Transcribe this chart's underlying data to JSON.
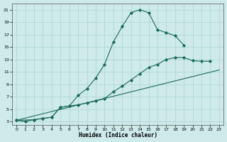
{
  "xlabel": "Humidex (Indice chaleur)",
  "xlim": [
    -0.5,
    23.5
  ],
  "ylim": [
    2.5,
    22.0
  ],
  "xticks": [
    0,
    1,
    2,
    3,
    4,
    5,
    6,
    7,
    8,
    9,
    10,
    11,
    12,
    13,
    14,
    15,
    16,
    17,
    18,
    19,
    20,
    21,
    22,
    23
  ],
  "yticks": [
    3,
    5,
    7,
    9,
    11,
    13,
    15,
    17,
    19,
    21
  ],
  "bg_color": "#ceeaea",
  "line_color": "#1e6b5a",
  "grid_color": "#aad4d4",
  "line1_x": [
    0,
    1,
    2,
    3,
    4,
    5,
    6,
    7,
    8,
    9,
    10,
    11,
    12,
    13,
    14,
    15,
    16,
    17,
    18,
    19
  ],
  "line1_y": [
    3.2,
    3.0,
    3.3,
    3.5,
    3.7,
    5.3,
    5.5,
    7.2,
    8.3,
    10.0,
    12.2,
    15.8,
    18.3,
    20.5,
    21.0,
    20.5,
    17.8,
    17.3,
    16.8,
    15.3
  ],
  "line2_x": [
    0,
    2,
    3,
    4,
    5,
    6,
    7,
    8,
    9,
    10,
    11,
    12,
    13,
    14,
    15,
    16,
    17,
    18,
    19,
    20,
    21,
    22
  ],
  "line2_y": [
    3.2,
    3.3,
    3.5,
    3.7,
    5.3,
    5.5,
    5.7,
    6.0,
    6.3,
    6.7,
    7.8,
    8.7,
    9.7,
    10.7,
    11.7,
    12.2,
    13.0,
    13.3,
    13.3,
    12.8,
    12.7,
    12.7
  ],
  "line3_x": [
    0,
    23
  ],
  "line3_y": [
    3.2,
    11.3
  ]
}
